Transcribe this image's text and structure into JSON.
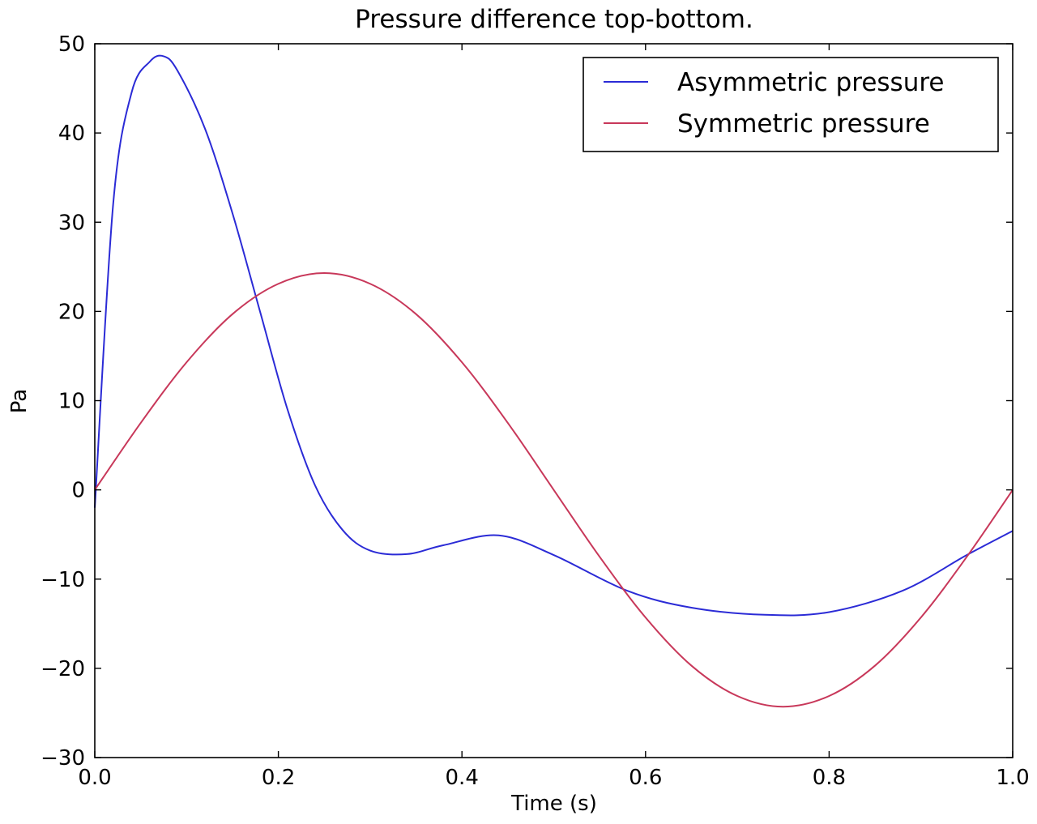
{
  "chart_data": {
    "type": "line",
    "title": "Pressure difference top-bottom.",
    "xlabel": "Time (s)",
    "ylabel": "Pa",
    "xlim": [
      0.0,
      1.0
    ],
    "ylim": [
      -30,
      50
    ],
    "x_ticks": [
      "0.0",
      "0.2",
      "0.4",
      "0.6",
      "0.8",
      "1.0"
    ],
    "y_ticks": [
      "50",
      "40",
      "30",
      "20",
      "10",
      "0",
      "−10",
      "−20",
      "−30"
    ],
    "grid": false,
    "legend_position": "top-right",
    "series": [
      {
        "name": "Asymmetric pressure",
        "color": "#2b2bd6",
        "x": [
          0.0,
          0.02,
          0.04,
          0.06,
          0.075,
          0.09,
          0.12,
          0.15,
          0.18,
          0.21,
          0.24,
          0.27,
          0.3,
          0.34,
          0.38,
          0.44,
          0.5,
          0.58,
          0.65,
          0.73,
          0.8,
          0.88,
          0.95,
          1.0
        ],
        "y": [
          -2.0,
          32.0,
          44.5,
          48.0,
          48.6,
          47.0,
          40.5,
          31.0,
          20.0,
          9.0,
          0.5,
          -4.5,
          -6.8,
          -7.2,
          -6.2,
          -5.1,
          -7.3,
          -11.3,
          -13.2,
          -14.0,
          -13.7,
          -11.3,
          -7.3,
          -4.6
        ]
      },
      {
        "name": "Symmetric pressure",
        "color": "#c8385a",
        "x": [
          0.0,
          0.05,
          0.1,
          0.15,
          0.2,
          0.25,
          0.3,
          0.35,
          0.4,
          0.45,
          0.5,
          0.55,
          0.6,
          0.65,
          0.7,
          0.75,
          0.8,
          0.85,
          0.9,
          0.95,
          1.0
        ],
        "y": [
          0.0,
          7.5,
          14.3,
          19.7,
          23.1,
          24.3,
          23.1,
          19.7,
          14.3,
          7.5,
          0.0,
          -7.5,
          -14.3,
          -19.7,
          -23.1,
          -24.3,
          -23.1,
          -19.7,
          -14.3,
          -7.5,
          0.0
        ]
      }
    ]
  }
}
